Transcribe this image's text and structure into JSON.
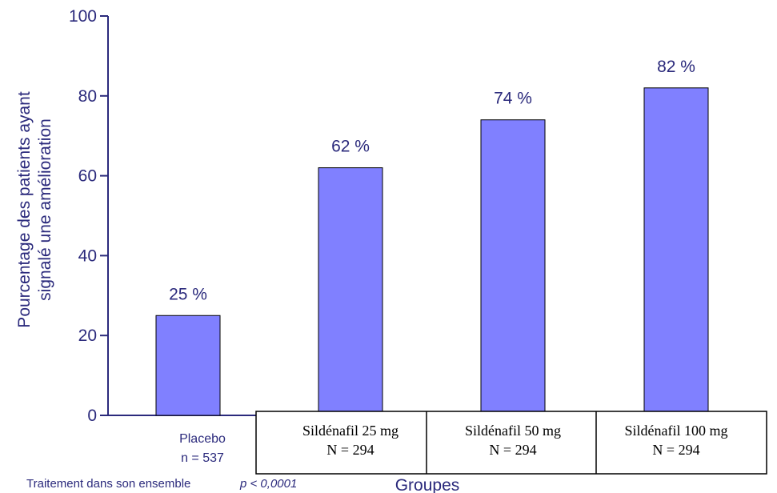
{
  "chart_data": {
    "type": "bar",
    "ylabel": [
      "Pourcentage des patients ayant",
      "signalé une amélioration"
    ],
    "xlabel": "Groupes",
    "ylim": [
      0,
      100
    ],
    "yticks": [
      0,
      20,
      40,
      60,
      80,
      100
    ],
    "categories": [
      {
        "name": "Placebo",
        "n": "n = 537"
      },
      {
        "name": "Sildénafil 25 mg",
        "n": "N = 294"
      },
      {
        "name": "Sildénafil 50 mg",
        "n": "N = 294"
      },
      {
        "name": "Sildénafil 100 mg",
        "n": "N = 294"
      }
    ],
    "values": [
      25,
      62,
      74,
      82
    ],
    "value_labels": [
      "25 %",
      "62 %",
      "74 %",
      "82 %"
    ],
    "footnote": {
      "text": "Traitement dans son ensemble",
      "p": "p < 0,0001"
    },
    "colors": {
      "bar": "#8080ff",
      "axis": "#2b2a7c"
    },
    "grid": false
  }
}
